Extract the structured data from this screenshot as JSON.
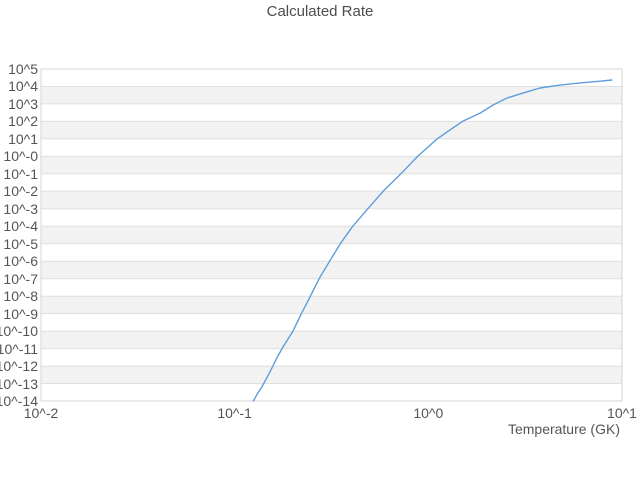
{
  "title": "Calculated Rate",
  "colors": {
    "background": "#ffffff",
    "band": "#f2f2f2",
    "grid": "#e0e0e0",
    "border": "#d4d4d4",
    "line": "#5e9ddd",
    "text": "#555555"
  },
  "x_axis": {
    "title": "Temperature (GK)",
    "scale": "log",
    "min_exp": -2,
    "max_exp": 1,
    "ticks": [
      {
        "label": "10^-2",
        "exp": -2
      },
      {
        "label": "10^-1",
        "exp": -1
      },
      {
        "label": "10^0",
        "exp": 0
      },
      {
        "label": "10^1",
        "exp": 1
      }
    ]
  },
  "y_axis": {
    "scale": "log",
    "min_exp": -14,
    "max_exp": 5,
    "ticks": [
      {
        "label": "10^5",
        "exp": 5
      },
      {
        "label": "10^4",
        "exp": 4
      },
      {
        "label": "10^3",
        "exp": 3
      },
      {
        "label": "10^2",
        "exp": 2
      },
      {
        "label": "10^1",
        "exp": 1
      },
      {
        "label": "10^-0",
        "exp": 0
      },
      {
        "label": "10^-1",
        "exp": -1
      },
      {
        "label": "10^-2",
        "exp": -2
      },
      {
        "label": "10^-3",
        "exp": -3
      },
      {
        "label": "10^-4",
        "exp": -4
      },
      {
        "label": "10^-5",
        "exp": -5
      },
      {
        "label": "10^-6",
        "exp": -6
      },
      {
        "label": "10^-7",
        "exp": -7
      },
      {
        "label": "10^-8",
        "exp": -8
      },
      {
        "label": "10^-9",
        "exp": -9
      },
      {
        "label": "10^-10",
        "exp": -10
      },
      {
        "label": "10^-11",
        "exp": -11
      },
      {
        "label": "10^-12",
        "exp": -12
      },
      {
        "label": "10^-13",
        "exp": -13
      },
      {
        "label": "10^-14",
        "exp": -14
      }
    ]
  },
  "chart_data": {
    "type": "line",
    "title": "Calculated Rate",
    "xlabel": "Temperature (GK)",
    "ylabel": "",
    "x_scale": "log",
    "y_scale": "log",
    "xlim": [
      0.01,
      10
    ],
    "ylim": [
      1e-14,
      100000.0
    ],
    "grid": "horizontal-decade-bands",
    "legend": "none",
    "series": [
      {
        "name": "calculated-rate",
        "points": [
          [
            0.125,
            1e-14
          ],
          [
            0.131,
            2.6e-14
          ],
          [
            0.138,
            6.3e-14
          ],
          [
            0.152,
            4.5e-13
          ],
          [
            0.165,
            2.9e-12
          ],
          [
            0.178,
            1.3e-11
          ],
          [
            0.2,
            1e-10
          ],
          [
            0.221,
            1e-09
          ],
          [
            0.246,
            1e-08
          ],
          [
            0.273,
            1e-07
          ],
          [
            0.309,
            1e-06
          ],
          [
            0.351,
            1e-05
          ],
          [
            0.407,
            0.0001
          ],
          [
            0.487,
            0.001
          ],
          [
            0.584,
            0.01
          ],
          [
            0.722,
            0.1
          ],
          [
            0.88,
            1.0
          ],
          [
            1.11,
            10.0
          ],
          [
            1.5,
            100.0
          ],
          [
            1.85,
            300.0
          ],
          [
            2.16,
            870.0
          ],
          [
            2.55,
            2200.0
          ],
          [
            3.08,
            4200.0
          ],
          [
            3.77,
            8200.0
          ],
          [
            4.79,
            12000.0
          ],
          [
            6.07,
            16000.0
          ],
          [
            7.7,
            20000.0
          ],
          [
            8.87,
            23500.0
          ]
        ]
      }
    ]
  }
}
